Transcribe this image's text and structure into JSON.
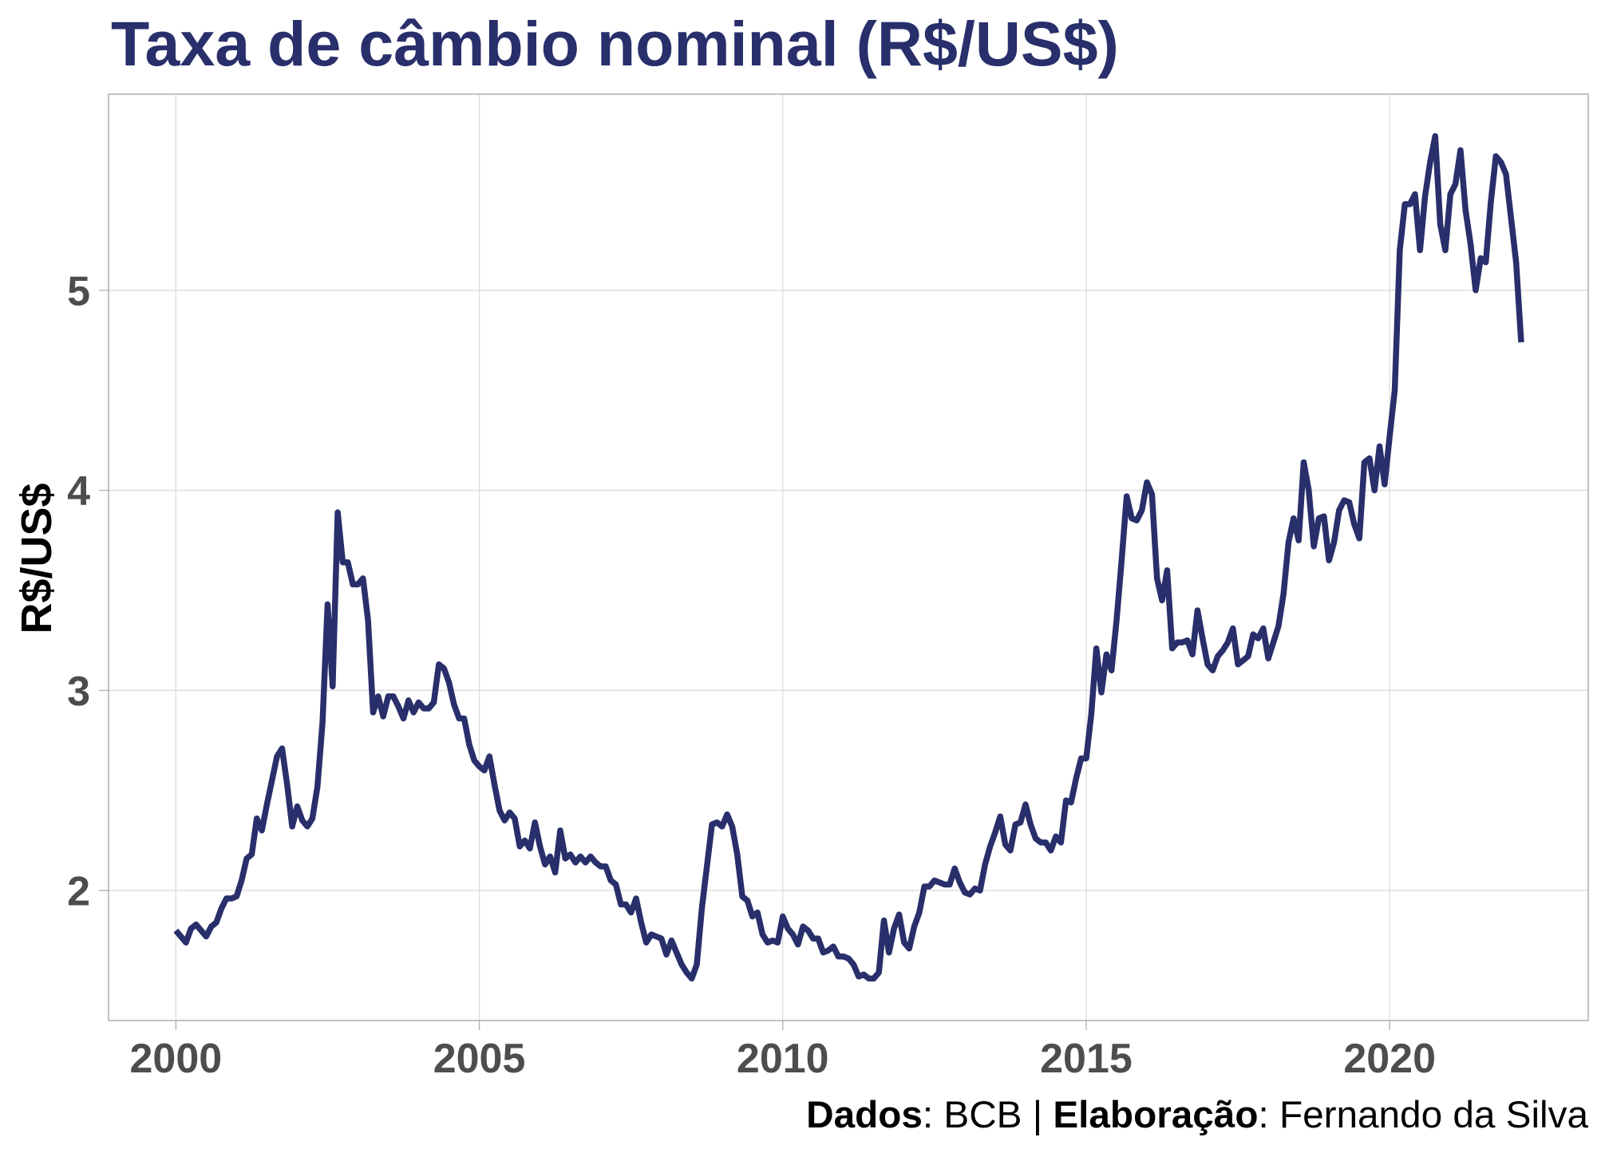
{
  "colors": {
    "title": "#282f6b",
    "series_line": "#282f6b",
    "tick_labels": "#4d4d4d",
    "gridlines": "#dedede",
    "panel_border": "#b3b3b3"
  },
  "chart_data": {
    "type": "line",
    "title": "Taxa de câmbio nominal (R$/US$)",
    "ylabel": "R$/US$",
    "xticks": [
      "2000",
      "2005",
      "2010",
      "2015",
      "2020"
    ],
    "yticks": [
      2,
      3,
      4,
      5
    ],
    "xlim": [
      "1998-11-22",
      "2023-04-09"
    ],
    "ylim": [
      1.35,
      5.98
    ],
    "grid": true,
    "x": [
      "2000-01",
      "2000-02",
      "2000-03",
      "2000-04",
      "2000-05",
      "2000-06",
      "2000-07",
      "2000-08",
      "2000-09",
      "2000-10",
      "2000-11",
      "2000-12",
      "2001-01",
      "2001-02",
      "2001-03",
      "2001-04",
      "2001-05",
      "2001-06",
      "2001-07",
      "2001-08",
      "2001-09",
      "2001-10",
      "2001-11",
      "2001-12",
      "2002-01",
      "2002-02",
      "2002-03",
      "2002-04",
      "2002-05",
      "2002-06",
      "2002-07",
      "2002-08",
      "2002-09",
      "2002-10",
      "2002-11",
      "2002-12",
      "2003-01",
      "2003-02",
      "2003-03",
      "2003-04",
      "2003-05",
      "2003-06",
      "2003-07",
      "2003-08",
      "2003-09",
      "2003-10",
      "2003-11",
      "2003-12",
      "2004-01",
      "2004-02",
      "2004-03",
      "2004-04",
      "2004-05",
      "2004-06",
      "2004-07",
      "2004-08",
      "2004-09",
      "2004-10",
      "2004-11",
      "2004-12",
      "2005-01",
      "2005-02",
      "2005-03",
      "2005-04",
      "2005-05",
      "2005-06",
      "2005-07",
      "2005-08",
      "2005-09",
      "2005-10",
      "2005-11",
      "2005-12",
      "2006-01",
      "2006-02",
      "2006-03",
      "2006-04",
      "2006-05",
      "2006-06",
      "2006-07",
      "2006-08",
      "2006-09",
      "2006-10",
      "2006-11",
      "2006-12",
      "2007-01",
      "2007-02",
      "2007-03",
      "2007-04",
      "2007-05",
      "2007-06",
      "2007-07",
      "2007-08",
      "2007-09",
      "2007-10",
      "2007-11",
      "2007-12",
      "2008-01",
      "2008-02",
      "2008-03",
      "2008-04",
      "2008-05",
      "2008-06",
      "2008-07",
      "2008-08",
      "2008-09",
      "2008-10",
      "2008-11",
      "2008-12",
      "2009-01",
      "2009-02",
      "2009-03",
      "2009-04",
      "2009-05",
      "2009-06",
      "2009-07",
      "2009-08",
      "2009-09",
      "2009-10",
      "2009-11",
      "2009-12",
      "2010-01",
      "2010-02",
      "2010-03",
      "2010-04",
      "2010-05",
      "2010-06",
      "2010-07",
      "2010-08",
      "2010-09",
      "2010-10",
      "2010-11",
      "2010-12",
      "2011-01",
      "2011-02",
      "2011-03",
      "2011-04",
      "2011-05",
      "2011-06",
      "2011-07",
      "2011-08",
      "2011-09",
      "2011-10",
      "2011-11",
      "2011-12",
      "2012-01",
      "2012-02",
      "2012-03",
      "2012-04",
      "2012-05",
      "2012-06",
      "2012-07",
      "2012-08",
      "2012-09",
      "2012-10",
      "2012-11",
      "2012-12",
      "2013-01",
      "2013-02",
      "2013-03",
      "2013-04",
      "2013-05",
      "2013-06",
      "2013-07",
      "2013-08",
      "2013-09",
      "2013-10",
      "2013-11",
      "2013-12",
      "2014-01",
      "2014-02",
      "2014-03",
      "2014-04",
      "2014-05",
      "2014-06",
      "2014-07",
      "2014-08",
      "2014-09",
      "2014-10",
      "2014-11",
      "2014-12",
      "2015-01",
      "2015-02",
      "2015-03",
      "2015-04",
      "2015-05",
      "2015-06",
      "2015-07",
      "2015-08",
      "2015-09",
      "2015-10",
      "2015-11",
      "2015-12",
      "2016-01",
      "2016-02",
      "2016-03",
      "2016-04",
      "2016-05",
      "2016-06",
      "2016-07",
      "2016-08",
      "2016-09",
      "2016-10",
      "2016-11",
      "2016-12",
      "2017-01",
      "2017-02",
      "2017-03",
      "2017-04",
      "2017-05",
      "2017-06",
      "2017-07",
      "2017-08",
      "2017-09",
      "2017-10",
      "2017-11",
      "2017-12",
      "2018-01",
      "2018-02",
      "2018-03",
      "2018-04",
      "2018-05",
      "2018-06",
      "2018-07",
      "2018-08",
      "2018-09",
      "2018-10",
      "2018-11",
      "2018-12",
      "2019-01",
      "2019-02",
      "2019-03",
      "2019-04",
      "2019-05",
      "2019-06",
      "2019-07",
      "2019-08",
      "2019-09",
      "2019-10",
      "2019-11",
      "2019-12",
      "2020-01",
      "2020-02",
      "2020-03",
      "2020-04",
      "2020-05",
      "2020-06",
      "2020-07",
      "2020-08",
      "2020-09",
      "2020-10",
      "2020-11",
      "2020-12",
      "2021-01",
      "2021-02",
      "2021-03",
      "2021-04",
      "2021-05",
      "2021-06",
      "2021-07",
      "2021-08",
      "2021-09",
      "2021-10",
      "2021-11",
      "2021-12",
      "2022-01",
      "2022-02",
      "2022-03"
    ],
    "y": [
      1.8,
      1.77,
      1.74,
      1.81,
      1.83,
      1.8,
      1.77,
      1.82,
      1.84,
      1.91,
      1.96,
      1.96,
      1.97,
      2.05,
      2.16,
      2.18,
      2.36,
      2.3,
      2.43,
      2.55,
      2.67,
      2.71,
      2.53,
      2.32,
      2.42,
      2.35,
      2.32,
      2.36,
      2.52,
      2.84,
      3.43,
      3.02,
      3.89,
      3.64,
      3.64,
      3.53,
      3.53,
      3.56,
      3.35,
      2.89,
      2.97,
      2.87,
      2.97,
      2.97,
      2.92,
      2.86,
      2.95,
      2.89,
      2.94,
      2.91,
      2.91,
      2.94,
      3.13,
      3.11,
      3.04,
      2.93,
      2.86,
      2.86,
      2.73,
      2.65,
      2.62,
      2.6,
      2.67,
      2.53,
      2.4,
      2.35,
      2.39,
      2.36,
      2.22,
      2.25,
      2.21,
      2.34,
      2.22,
      2.13,
      2.17,
      2.09,
      2.3,
      2.16,
      2.18,
      2.14,
      2.17,
      2.14,
      2.17,
      2.14,
      2.12,
      2.12,
      2.05,
      2.03,
      1.93,
      1.93,
      1.89,
      1.96,
      1.84,
      1.74,
      1.78,
      1.77,
      1.76,
      1.68,
      1.75,
      1.69,
      1.63,
      1.59,
      1.56,
      1.63,
      1.91,
      2.12,
      2.33,
      2.34,
      2.32,
      2.38,
      2.32,
      2.18,
      1.97,
      1.95,
      1.87,
      1.89,
      1.78,
      1.74,
      1.75,
      1.74,
      1.87,
      1.81,
      1.78,
      1.73,
      1.82,
      1.8,
      1.76,
      1.76,
      1.69,
      1.7,
      1.72,
      1.67,
      1.67,
      1.66,
      1.63,
      1.57,
      1.58,
      1.56,
      1.56,
      1.59,
      1.85,
      1.69,
      1.81,
      1.88,
      1.74,
      1.71,
      1.82,
      1.89,
      2.02,
      2.02,
      2.05,
      2.04,
      2.03,
      2.03,
      2.11,
      2.04,
      1.99,
      1.98,
      2.01,
      2.0,
      2.13,
      2.22,
      2.29,
      2.37,
      2.23,
      2.2,
      2.33,
      2.34,
      2.43,
      2.33,
      2.26,
      2.24,
      2.24,
      2.2,
      2.27,
      2.24,
      2.45,
      2.44,
      2.56,
      2.66,
      2.66,
      2.88,
      3.21,
      2.99,
      3.18,
      3.1,
      3.35,
      3.65,
      3.97,
      3.86,
      3.85,
      3.9,
      4.04,
      3.98,
      3.56,
      3.45,
      3.6,
      3.21,
      3.24,
      3.24,
      3.25,
      3.18,
      3.4,
      3.26,
      3.13,
      3.1,
      3.17,
      3.2,
      3.24,
      3.31,
      3.13,
      3.15,
      3.17,
      3.28,
      3.26,
      3.31,
      3.16,
      3.24,
      3.32,
      3.48,
      3.74,
      3.86,
      3.75,
      4.14,
      4.0,
      3.72,
      3.86,
      3.87,
      3.65,
      3.74,
      3.9,
      3.95,
      3.94,
      3.83,
      3.76,
      4.14,
      4.16,
      4.0,
      4.22,
      4.03,
      4.27,
      4.5,
      5.2,
      5.43,
      5.43,
      5.48,
      5.2,
      5.47,
      5.64,
      5.77,
      5.33,
      5.2,
      5.48,
      5.53,
      5.7,
      5.4,
      5.23,
      5.0,
      5.16,
      5.14,
      5.44,
      5.67,
      5.64,
      5.58,
      5.36,
      5.14,
      4.74
    ],
    "caption": {
      "source_label": "Dados",
      "source": ": BCB | ",
      "author_label": "Elaboração",
      "author": ": Fernando da Silva"
    }
  }
}
